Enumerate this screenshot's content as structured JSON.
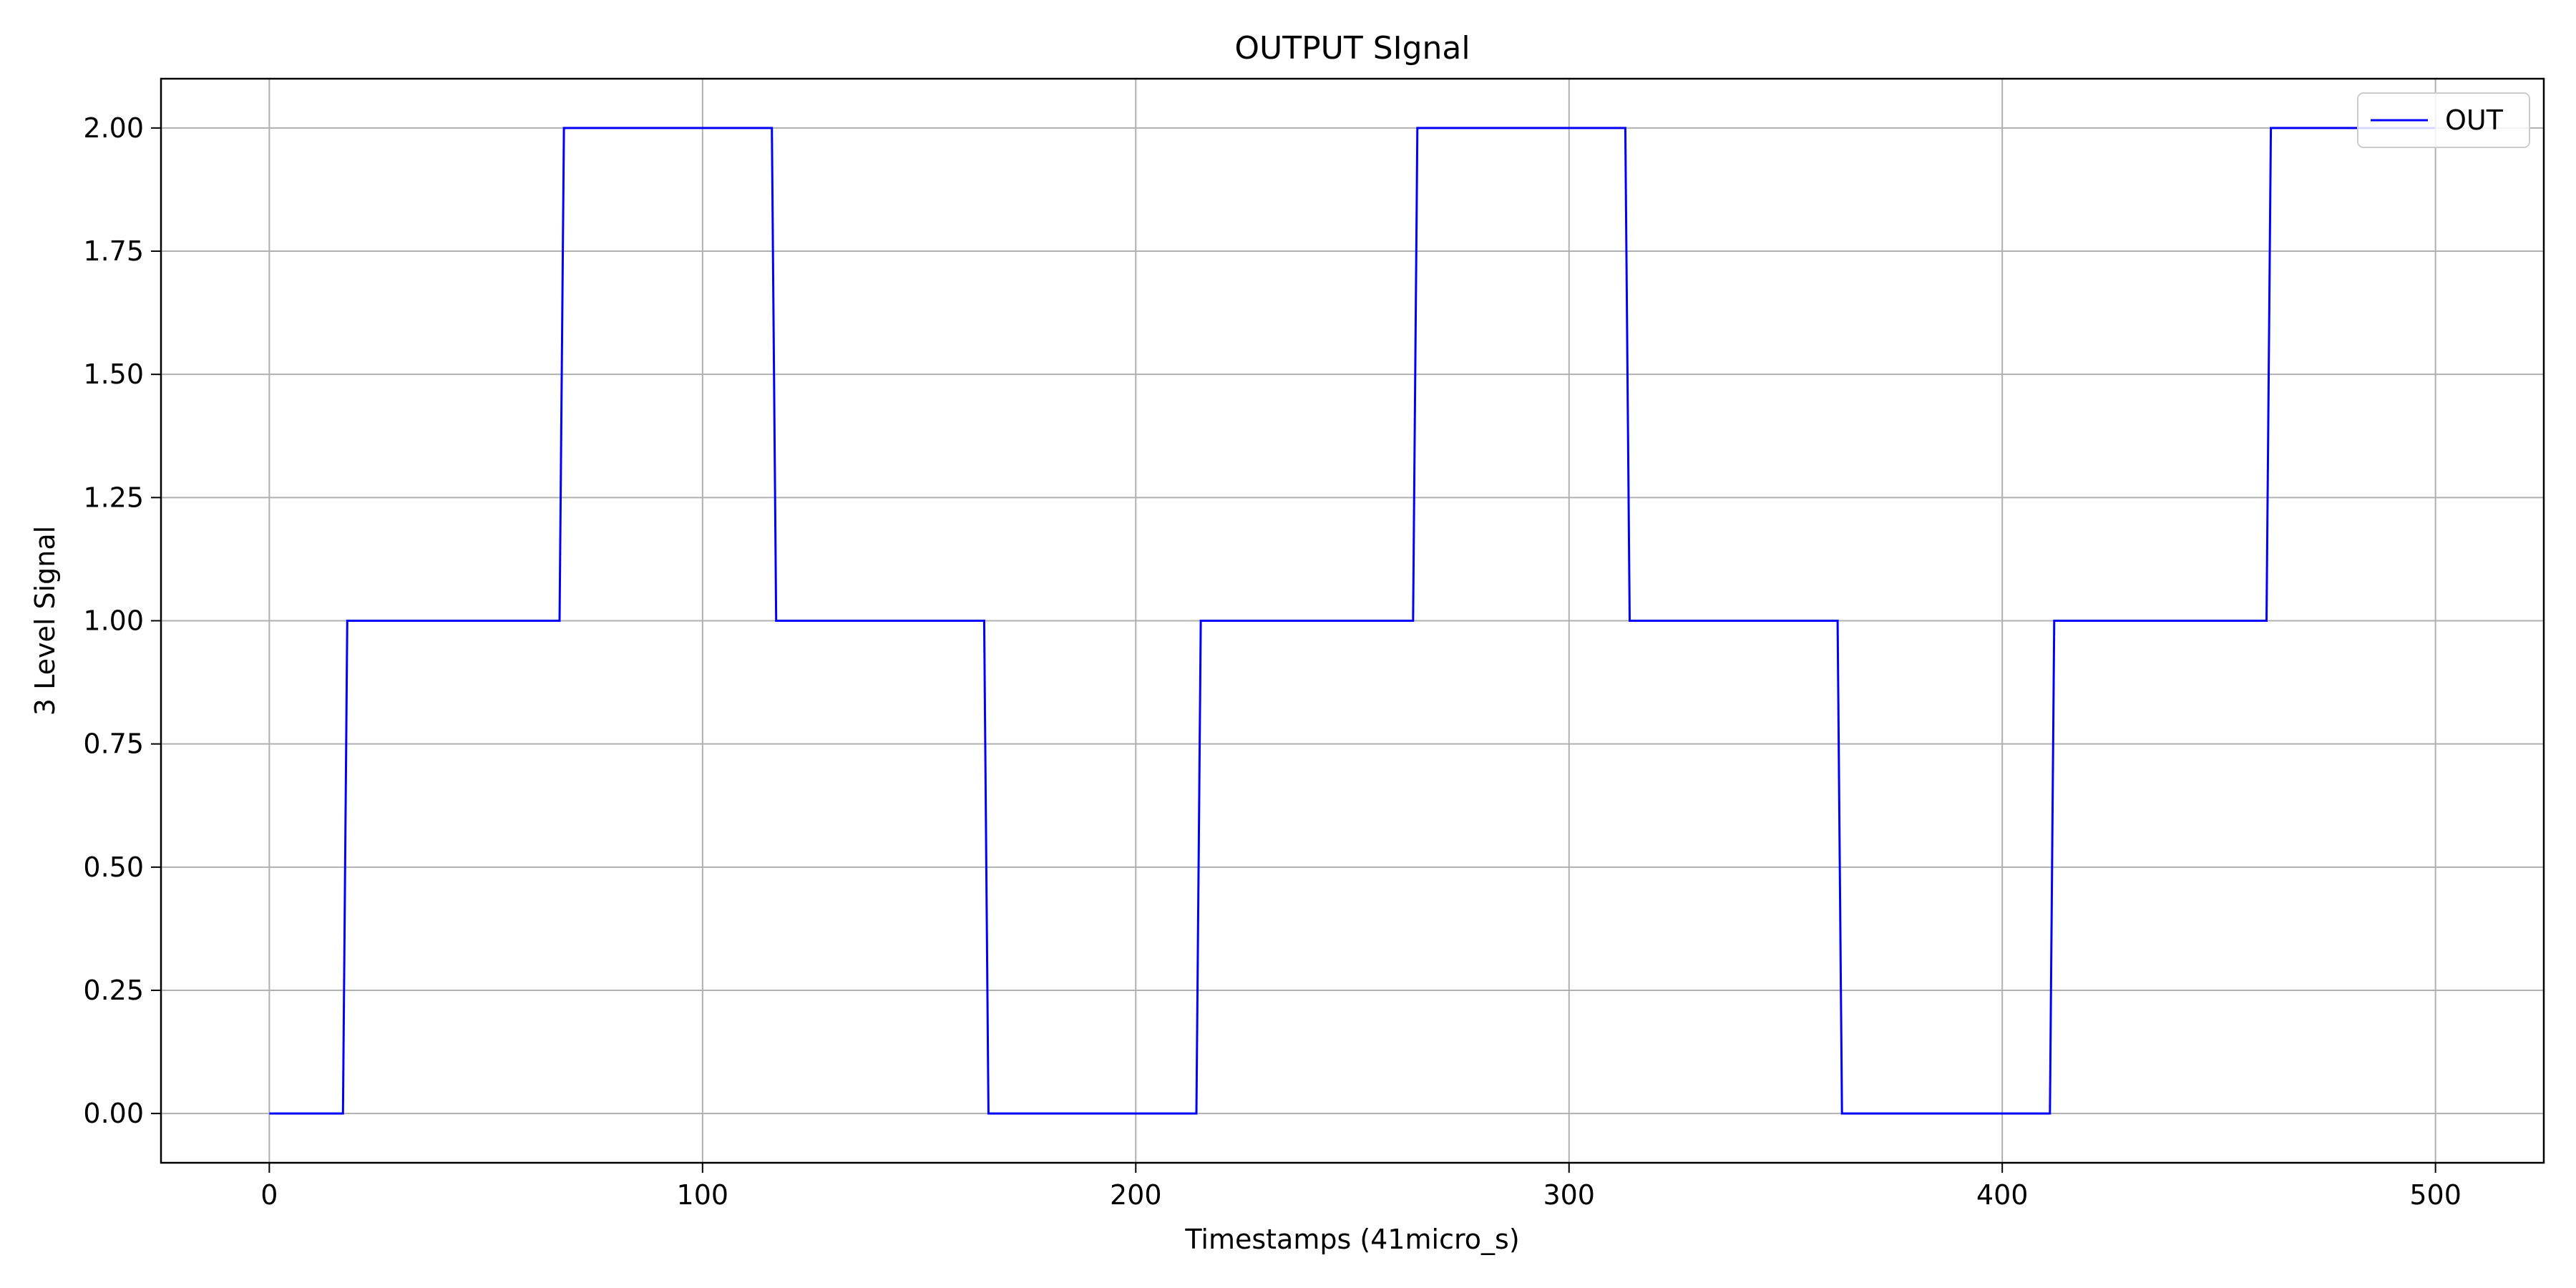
{
  "chart_data": {
    "type": "line",
    "title": "OUTPUT SIgnal",
    "xlabel": "Timestamps (41micro_s)",
    "ylabel": "3 Level Signal",
    "xlim": [
      -25,
      525
    ],
    "ylim": [
      -0.1,
      2.1
    ],
    "xticks": [
      0,
      100,
      200,
      300,
      400,
      500
    ],
    "xtick_labels": [
      "0",
      "100",
      "200",
      "300",
      "400",
      "500"
    ],
    "yticks": [
      0,
      0.25,
      0.5,
      0.75,
      1.0,
      1.25,
      1.5,
      1.75,
      2.0
    ],
    "ytick_labels": [
      "0.00",
      "0.25",
      "0.50",
      "0.75",
      "1.00",
      "1.25",
      "1.50",
      "1.75",
      "2.00"
    ],
    "grid": true,
    "legend_position": "top-right",
    "series": [
      {
        "name": "OUT",
        "color": "#0000ff",
        "x": [
          0,
          17,
          18,
          67,
          68,
          116,
          117,
          165,
          166,
          214,
          215,
          264,
          265,
          313,
          314,
          362,
          363,
          411,
          412,
          461,
          462,
          500
        ],
        "y": [
          0,
          0,
          1,
          1,
          2,
          2,
          1,
          1,
          0,
          0,
          1,
          1,
          2,
          2,
          1,
          1,
          0,
          0,
          1,
          1,
          2,
          2
        ]
      }
    ]
  }
}
